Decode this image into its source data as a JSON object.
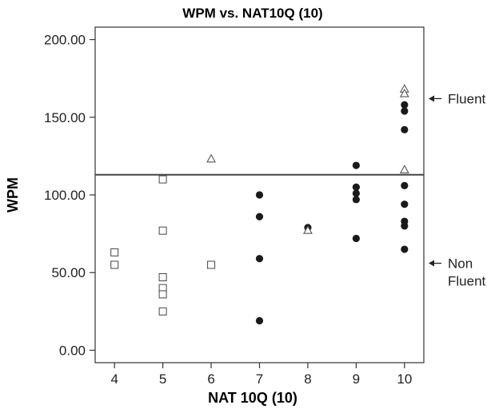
{
  "chart_data": {
    "type": "scatter",
    "title": "WPM vs. NAT10Q (10)",
    "xlabel": "NAT 10Q (10)",
    "ylabel": "WPM",
    "xlim": [
      3.6,
      10.4
    ],
    "ylim": [
      -8,
      208
    ],
    "x_ticks": [
      "4",
      "5",
      "6",
      "7",
      "8",
      "9",
      "10"
    ],
    "y_ticks": [
      "0.00",
      "50.00",
      "100.00",
      "150.00",
      "200.00"
    ],
    "reference_line": {
      "y": 113
    },
    "annotations": [
      {
        "text": [
          "Fluent"
        ],
        "y": 162,
        "arrow": "left"
      },
      {
        "text": [
          "Non",
          "Fluent"
        ],
        "y": 56,
        "arrow": "left"
      }
    ],
    "series": [
      {
        "marker": "square-open",
        "points": [
          [
            4,
            63
          ],
          [
            4,
            55
          ],
          [
            5,
            110
          ],
          [
            5,
            77
          ],
          [
            5,
            47
          ],
          [
            5,
            40
          ],
          [
            5,
            36
          ],
          [
            5,
            25
          ],
          [
            6,
            55
          ]
        ]
      },
      {
        "marker": "circle-filled",
        "points": [
          [
            7,
            100
          ],
          [
            7,
            86
          ],
          [
            7,
            59
          ],
          [
            7,
            19
          ],
          [
            8,
            79
          ],
          [
            9,
            119
          ],
          [
            9,
            105
          ],
          [
            9,
            101
          ],
          [
            9,
            97
          ],
          [
            9,
            72
          ],
          [
            10,
            158
          ],
          [
            10,
            154
          ],
          [
            10,
            142
          ],
          [
            10,
            106
          ],
          [
            10,
            94
          ],
          [
            10,
            83
          ],
          [
            10,
            80
          ],
          [
            10,
            65
          ]
        ]
      },
      {
        "marker": "triangle-open",
        "points": [
          [
            6,
            123
          ],
          [
            8,
            77
          ],
          [
            10,
            168
          ],
          [
            10,
            165
          ],
          [
            10,
            116
          ]
        ]
      }
    ]
  }
}
